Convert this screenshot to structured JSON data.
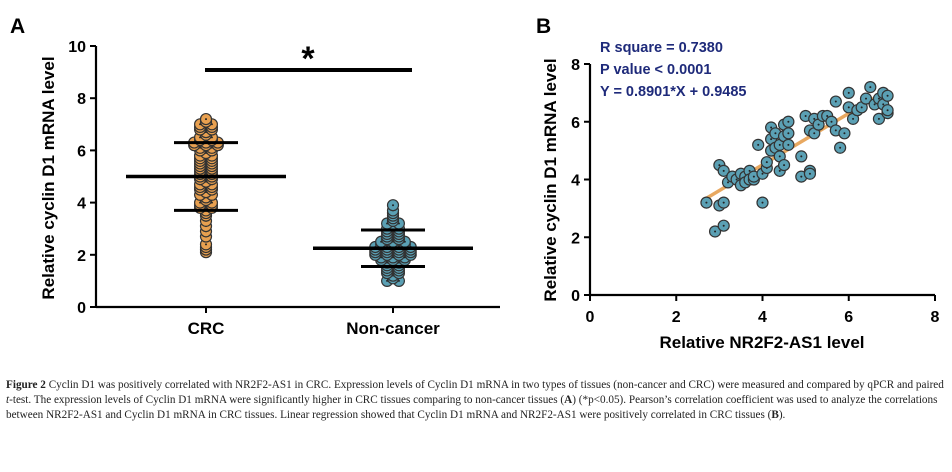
{
  "colors": {
    "crc_fill": "#E8A050",
    "noncancer_fill": "#5BA0B4",
    "dot_stroke": "#333333",
    "regression_line": "#E8A860",
    "stats_text": "#1E2A7A"
  },
  "chart_data": [
    {
      "type": "scatter",
      "panel": "A",
      "subtype": "dot-plot",
      "ylabel": "Relative cyclin D1 mRNA level",
      "ylim": [
        0,
        10
      ],
      "yticks": [
        "0",
        "2",
        "4",
        "6",
        "8",
        "10"
      ],
      "categories": [
        "CRC",
        "Non-cancer"
      ],
      "significance": "*",
      "series": [
        {
          "name": "CRC",
          "mean": 5.0,
          "sd": 1.3,
          "values": [
            7.2,
            7.1,
            7.0,
            7.0,
            6.9,
            6.9,
            6.8,
            6.8,
            6.7,
            6.6,
            6.5,
            6.5,
            6.4,
            6.4,
            6.3,
            6.3,
            6.3,
            6.2,
            6.2,
            6.2,
            6.1,
            6.1,
            6.0,
            6.0,
            5.9,
            5.8,
            5.8,
            5.7,
            5.7,
            5.6,
            5.6,
            5.5,
            5.5,
            5.4,
            5.4,
            5.3,
            5.3,
            5.2,
            5.2,
            5.1,
            5.1,
            5.0,
            5.0,
            4.9,
            4.9,
            4.8,
            4.7,
            4.7,
            4.6,
            4.6,
            4.5,
            4.5,
            4.4,
            4.3,
            4.3,
            4.2,
            4.1,
            4.0,
            4.0,
            3.9,
            3.9,
            3.8,
            3.8,
            3.7,
            3.6,
            3.5,
            3.3,
            3.1,
            2.9,
            2.7,
            2.4,
            2.3,
            2.2,
            2.1
          ]
        },
        {
          "name": "Non-cancer",
          "mean": 2.25,
          "sd": 0.7,
          "values": [
            3.9,
            3.7,
            3.6,
            3.5,
            3.4,
            3.3,
            3.2,
            3.2,
            3.1,
            3.0,
            3.0,
            2.9,
            2.9,
            2.8,
            2.8,
            2.7,
            2.7,
            2.6,
            2.6,
            2.5,
            2.5,
            2.5,
            2.4,
            2.4,
            2.4,
            2.3,
            2.3,
            2.3,
            2.3,
            2.2,
            2.2,
            2.2,
            2.2,
            2.1,
            2.1,
            2.1,
            2.1,
            2.0,
            2.0,
            2.0,
            2.0,
            1.9,
            1.9,
            1.9,
            1.8,
            1.8,
            1.8,
            1.7,
            1.7,
            1.6,
            1.6,
            1.5,
            1.5,
            1.4,
            1.4,
            1.3,
            1.3,
            1.2,
            1.1,
            1.0,
            1.0
          ]
        }
      ]
    },
    {
      "type": "scatter",
      "panel": "B",
      "xlabel": "Relative NR2F2-AS1 level",
      "ylabel": "Relative cyclin D1 mRNA level",
      "xlim": [
        0,
        8
      ],
      "ylim": [
        0,
        8
      ],
      "xticks": [
        "0",
        "2",
        "4",
        "6",
        "8"
      ],
      "yticks": [
        "0",
        "2",
        "4",
        "6",
        "8"
      ],
      "annotations": [
        "R square = 0.7380",
        "P value < 0.0001",
        "Y = 0.8901*X + 0.9485"
      ],
      "regression": {
        "slope": 0.8901,
        "intercept": 0.9485,
        "x_range": [
          2.7,
          6.6
        ]
      },
      "points": [
        [
          2.7,
          3.2
        ],
        [
          2.9,
          2.2
        ],
        [
          3.0,
          4.5
        ],
        [
          3.0,
          3.1
        ],
        [
          3.1,
          2.4
        ],
        [
          3.1,
          3.2
        ],
        [
          3.1,
          4.3
        ],
        [
          3.2,
          3.9
        ],
        [
          3.3,
          4.1
        ],
        [
          3.4,
          4.0
        ],
        [
          3.5,
          3.8
        ],
        [
          3.5,
          4.2
        ],
        [
          3.6,
          4.1
        ],
        [
          3.6,
          3.9
        ],
        [
          3.7,
          4.3
        ],
        [
          3.7,
          4.0
        ],
        [
          3.8,
          4.0
        ],
        [
          3.8,
          4.1
        ],
        [
          3.9,
          5.2
        ],
        [
          4.0,
          4.2
        ],
        [
          4.0,
          3.2
        ],
        [
          4.1,
          4.4
        ],
        [
          4.1,
          4.6
        ],
        [
          4.2,
          5.8
        ],
        [
          4.2,
          5.0
        ],
        [
          4.2,
          5.4
        ],
        [
          4.3,
          5.6
        ],
        [
          4.3,
          5.1
        ],
        [
          4.4,
          4.8
        ],
        [
          4.4,
          5.2
        ],
        [
          4.4,
          4.3
        ],
        [
          4.5,
          5.9
        ],
        [
          4.5,
          5.5
        ],
        [
          4.5,
          4.5
        ],
        [
          4.6,
          5.6
        ],
        [
          4.6,
          5.2
        ],
        [
          4.6,
          6.0
        ],
        [
          4.9,
          4.8
        ],
        [
          4.9,
          4.1
        ],
        [
          5.0,
          6.2
        ],
        [
          5.1,
          5.7
        ],
        [
          5.1,
          4.3
        ],
        [
          5.1,
          4.2
        ],
        [
          5.2,
          5.6
        ],
        [
          5.2,
          6.1
        ],
        [
          5.3,
          5.9
        ],
        [
          5.4,
          6.2
        ],
        [
          5.5,
          6.2
        ],
        [
          5.6,
          6.0
        ],
        [
          5.7,
          5.7
        ],
        [
          5.7,
          6.7
        ],
        [
          5.8,
          5.1
        ],
        [
          5.9,
          5.6
        ],
        [
          6.0,
          6.5
        ],
        [
          6.0,
          7.0
        ],
        [
          6.1,
          6.1
        ],
        [
          6.2,
          6.4
        ],
        [
          6.3,
          6.5
        ],
        [
          6.4,
          6.8
        ],
        [
          6.5,
          7.2
        ],
        [
          6.6,
          6.6
        ],
        [
          6.7,
          6.8
        ],
        [
          6.7,
          6.1
        ],
        [
          6.8,
          6.6
        ],
        [
          6.8,
          7.0
        ],
        [
          6.9,
          6.3
        ],
        [
          6.9,
          6.4
        ],
        [
          6.9,
          6.9
        ]
      ]
    }
  ],
  "caption": {
    "figure_label": "Figure 2",
    "title_sentence": "Cyclin D1 was positively correlated with NR2F2-AS1 in CRC.",
    "sentence2_pre": "Expression levels of Cyclin D1 mRNA in two types of tissues (non-cancer and CRC) were measured and compared by qPCR and paired",
    "t_italic": "t",
    "sentence2_post": "-test. The expression levels of Cyclin D1 mRNA were significantly higher in CRC tissues comparing to non-cancer tissues (",
    "ref_a": "A",
    "sig_note": ") (*p<0.05).",
    "sentence3": "Pearson’s correlation coefficient was used to analyze the correlations between NR2F2-AS1 and Cyclin D1 mRNA in CRC tissues. Linear regression showed that Cyclin D1 mRNA and NR2F2-AS1 were positively correlated in CRC tissues (",
    "ref_b": "B",
    "end": ")."
  }
}
